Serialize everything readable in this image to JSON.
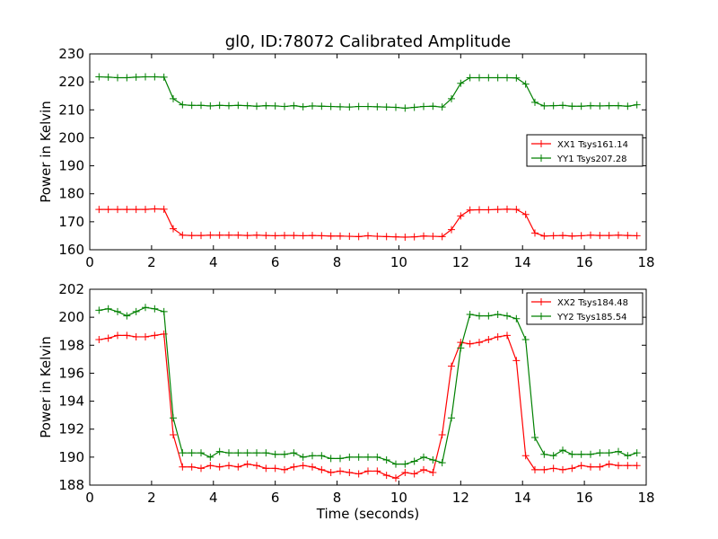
{
  "chart_data": [
    {
      "type": "line",
      "title": "gl0, ID:78072 Calibrated Amplitude",
      "xlabel": "",
      "ylabel": "Power in Kelvin",
      "xlim": [
        0,
        18
      ],
      "ylim": [
        160,
        230
      ],
      "xticks": [
        "0",
        "2",
        "4",
        "6",
        "8",
        "10",
        "12",
        "14",
        "16",
        "18"
      ],
      "yticks": [
        "160",
        "170",
        "180",
        "190",
        "200",
        "210",
        "220",
        "230"
      ],
      "legend_position": "center-right",
      "x": [
        0.3,
        0.6,
        0.9,
        1.2,
        1.5,
        1.8,
        2.1,
        2.4,
        2.7,
        3.0,
        3.3,
        3.6,
        3.9,
        4.2,
        4.5,
        4.8,
        5.1,
        5.4,
        5.7,
        6.0,
        6.3,
        6.6,
        6.9,
        7.2,
        7.5,
        7.8,
        8.1,
        8.4,
        8.7,
        9.0,
        9.3,
        9.6,
        9.9,
        10.2,
        10.5,
        10.8,
        11.1,
        11.4,
        11.7,
        12.0,
        12.3,
        12.6,
        12.9,
        13.2,
        13.5,
        13.8,
        14.1,
        14.4,
        14.7,
        15.0,
        15.3,
        15.6,
        15.9,
        16.2,
        16.5,
        16.8,
        17.1,
        17.4,
        17.7
      ],
      "series": [
        {
          "name": "XX1 Tsys161.14",
          "color": "#ff0000",
          "values": [
            174.4,
            174.4,
            174.4,
            174.4,
            174.4,
            174.4,
            174.6,
            174.5,
            167.5,
            165.2,
            165.1,
            165.1,
            165.2,
            165.2,
            165.2,
            165.2,
            165.1,
            165.2,
            165.1,
            165.0,
            165.1,
            165.1,
            165.0,
            165.1,
            165.0,
            164.9,
            164.9,
            164.8,
            164.7,
            165.0,
            164.8,
            164.7,
            164.6,
            164.5,
            164.6,
            164.9,
            164.8,
            164.7,
            167.2,
            172.1,
            174.2,
            174.3,
            174.3,
            174.4,
            174.5,
            174.4,
            172.6,
            166.0,
            164.9,
            165.0,
            165.1,
            164.9,
            165.0,
            165.2,
            165.1,
            165.1,
            165.2,
            165.1,
            165.0
          ]
        },
        {
          "name": "YY1 Tsys207.28",
          "color": "#008000",
          "values": [
            221.8,
            221.7,
            221.5,
            221.5,
            221.7,
            221.8,
            221.8,
            221.7,
            214.0,
            211.8,
            211.6,
            211.6,
            211.4,
            211.6,
            211.5,
            211.6,
            211.5,
            211.3,
            211.5,
            211.4,
            211.2,
            211.5,
            211.1,
            211.4,
            211.3,
            211.2,
            211.1,
            211.0,
            211.2,
            211.2,
            211.1,
            211.0,
            210.9,
            210.6,
            210.9,
            211.2,
            211.3,
            211.0,
            214.0,
            219.5,
            221.5,
            221.5,
            221.5,
            221.5,
            221.5,
            221.4,
            219.2,
            212.7,
            211.4,
            211.5,
            211.6,
            211.3,
            211.3,
            211.5,
            211.4,
            211.5,
            211.5,
            211.3,
            211.8
          ]
        }
      ]
    },
    {
      "type": "line",
      "title": "",
      "xlabel": "Time (seconds)",
      "ylabel": "Power in Kelvin",
      "xlim": [
        0,
        18
      ],
      "ylim": [
        188,
        202
      ],
      "xticks": [
        "0",
        "2",
        "4",
        "6",
        "8",
        "10",
        "12",
        "14",
        "16",
        "18"
      ],
      "yticks": [
        "188",
        "190",
        "192",
        "194",
        "196",
        "198",
        "200",
        "202"
      ],
      "legend_position": "top-right",
      "x": [
        0.3,
        0.6,
        0.9,
        1.2,
        1.5,
        1.8,
        2.1,
        2.4,
        2.7,
        3.0,
        3.3,
        3.6,
        3.9,
        4.2,
        4.5,
        4.8,
        5.1,
        5.4,
        5.7,
        6.0,
        6.3,
        6.6,
        6.9,
        7.2,
        7.5,
        7.8,
        8.1,
        8.4,
        8.7,
        9.0,
        9.3,
        9.6,
        9.9,
        10.2,
        10.5,
        10.8,
        11.1,
        11.4,
        11.7,
        12.0,
        12.3,
        12.6,
        12.9,
        13.2,
        13.5,
        13.8,
        14.1,
        14.4,
        14.7,
        15.0,
        15.3,
        15.6,
        15.9,
        16.2,
        16.5,
        16.8,
        17.1,
        17.4,
        17.7
      ],
      "series": [
        {
          "name": "XX2 Tsys184.48",
          "color": "#ff0000",
          "values": [
            198.4,
            198.5,
            198.7,
            198.7,
            198.6,
            198.6,
            198.7,
            198.8,
            191.6,
            189.3,
            189.3,
            189.2,
            189.4,
            189.3,
            189.4,
            189.3,
            189.5,
            189.4,
            189.2,
            189.2,
            189.1,
            189.3,
            189.4,
            189.3,
            189.1,
            188.9,
            189.0,
            188.9,
            188.8,
            189.0,
            189.0,
            188.7,
            188.5,
            188.9,
            188.8,
            189.1,
            188.9,
            191.6,
            196.5,
            198.2,
            198.1,
            198.2,
            198.4,
            198.6,
            198.7,
            196.9,
            190.1,
            189.1,
            189.1,
            189.2,
            189.1,
            189.2,
            189.4,
            189.3,
            189.3,
            189.5,
            189.4,
            189.4,
            189.4
          ]
        },
        {
          "name": "YY2 Tsys185.54",
          "color": "#008000",
          "values": [
            200.5,
            200.6,
            200.4,
            200.1,
            200.4,
            200.7,
            200.6,
            200.4,
            192.8,
            190.3,
            190.3,
            190.3,
            190.0,
            190.4,
            190.3,
            190.3,
            190.3,
            190.3,
            190.3,
            190.2,
            190.2,
            190.3,
            190.0,
            190.1,
            190.1,
            189.9,
            189.9,
            190.0,
            190.0,
            190.0,
            190.0,
            189.8,
            189.5,
            189.5,
            189.7,
            190.0,
            189.8,
            189.6,
            192.8,
            197.8,
            200.2,
            200.1,
            200.1,
            200.2,
            200.1,
            199.9,
            198.4,
            191.4,
            190.2,
            190.1,
            190.5,
            190.2,
            190.2,
            190.2,
            190.3,
            190.3,
            190.4,
            190.1,
            190.3
          ]
        }
      ]
    }
  ]
}
